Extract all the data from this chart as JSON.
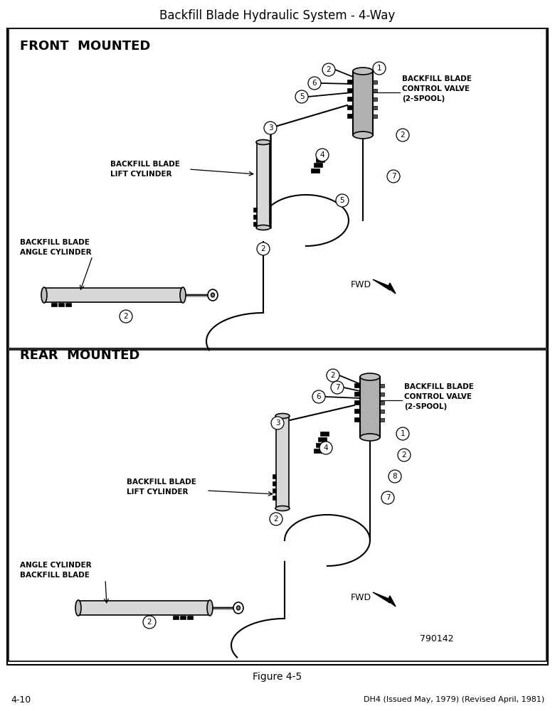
{
  "title": "Backfill Blade Hydraulic System - 4-Way",
  "figure_caption": "Figure 4-5",
  "page_number": "4-10",
  "footer_text": "DH4 (Issued May, 1979) (Revised April, 1981)",
  "figure_number": "790142",
  "top_section_label": "FRONT  MOUNTED",
  "bottom_section_label": "REAR  MOUNTED",
  "bg_color": "#ffffff",
  "front_cv_label": "BACKFILL BLADE\nCONTROL VALVE\n(2-SPOOL)",
  "front_lc_label": "BACKFILL BLADE\nLIFT CYLINDER",
  "front_ac_label": "BACKFILL BLADE\nANGLE CYLINDER",
  "rear_cv_label": "BACKFILL BLADE\nCONTROL VALVE\n(2-SPOOL)",
  "rear_lc_label": "BACKFILL BLADE\nLIFT CYLINDER",
  "rear_ac_label": "ANGLE CYLINDER\nBACKFILL BLADE"
}
